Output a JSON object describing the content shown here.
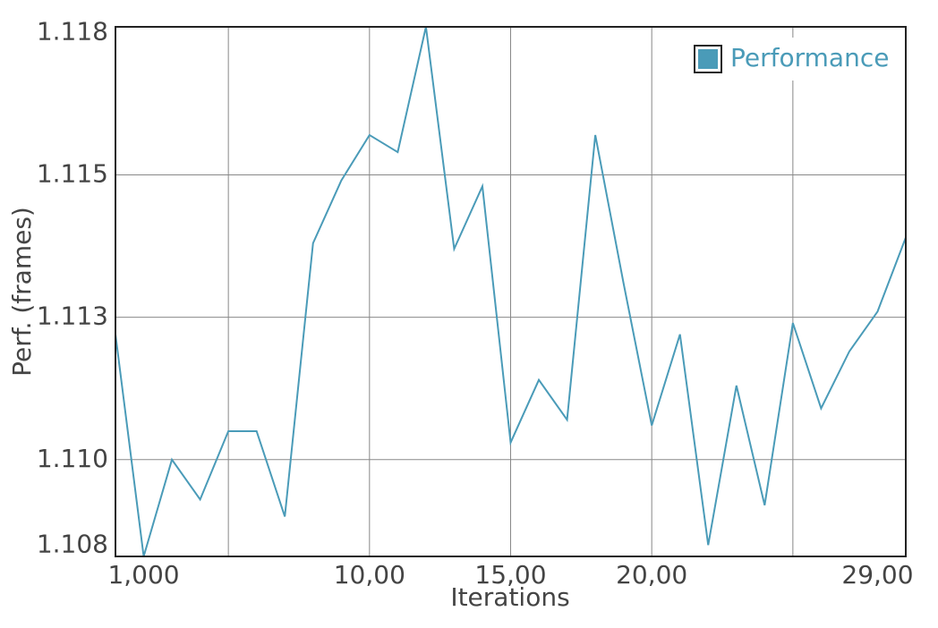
{
  "chart_data": {
    "type": "line",
    "x_label": "Iterations",
    "y_label": "Perf. (frames)",
    "x": [
      0,
      1,
      2,
      3,
      4,
      5,
      6,
      7,
      8,
      9,
      10,
      11,
      12,
      13,
      14,
      15,
      16,
      17,
      18,
      19,
      20,
      21,
      22,
      23,
      24,
      25,
      26,
      27,
      28
    ],
    "series": [
      {
        "name": "Performance",
        "color": "#4a9bb8",
        "values": [
          1.1122,
          1.1083,
          1.11,
          1.1093,
          1.1105,
          1.1105,
          1.109,
          1.1138,
          1.1149,
          1.1157,
          1.1154,
          1.1176,
          1.1137,
          1.1148,
          1.1103,
          1.1114,
          1.1107,
          1.1157,
          1.1131,
          1.1106,
          1.1122,
          1.1085,
          1.1113,
          1.1092,
          1.1124,
          1.1109,
          1.1119,
          1.1126,
          1.1139
        ]
      }
    ],
    "xlim": [
      0,
      28
    ],
    "xticks": [
      {
        "value": 1,
        "label": "1,000"
      },
      {
        "value": 9,
        "label": "10,00"
      },
      {
        "value": 14,
        "label": "15,00"
      },
      {
        "value": 19,
        "label": "20,00"
      },
      {
        "value": 27,
        "label": "29,00"
      }
    ],
    "xgrid": [
      4,
      9,
      14,
      19,
      24
    ],
    "ylim": [
      1.1083,
      1.1176
    ],
    "yticks": [
      {
        "value": 1.1085,
        "label": "1.108"
      },
      {
        "value": 1.11,
        "label": "1.110"
      },
      {
        "value": 1.1125,
        "label": "1.113"
      },
      {
        "value": 1.115,
        "label": "1.115"
      },
      {
        "value": 1.1175,
        "label": "1.118"
      }
    ],
    "ygrid": [
      1.11,
      1.1125,
      1.115
    ],
    "grid": true,
    "legend": "upper right"
  }
}
